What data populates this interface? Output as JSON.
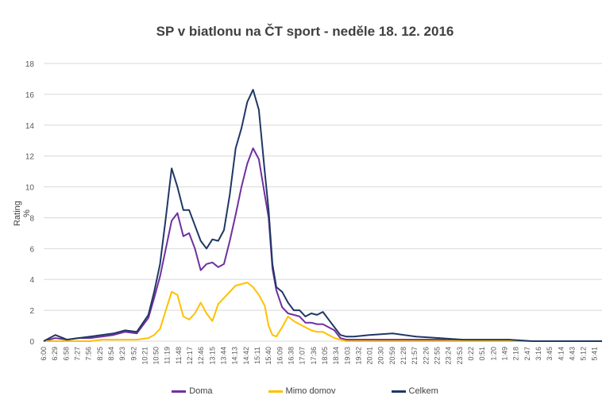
{
  "chart_data": {
    "type": "line",
    "title": "SP v biatlonu na ČT sport - neděle 18. 12. 2016",
    "xlabel": "",
    "ylabel": "Rating %",
    "ylim": [
      0,
      18
    ],
    "yticks": [
      0,
      2,
      4,
      6,
      8,
      10,
      12,
      14,
      16,
      18
    ],
    "grid": true,
    "legend_position": "bottom",
    "xtick_labels": [
      "6:00",
      "6:29",
      "6:58",
      "7:27",
      "7:56",
      "8:25",
      "8:54",
      "9:23",
      "9:52",
      "10:21",
      "10:50",
      "11:19",
      "11:48",
      "12:17",
      "12:46",
      "13:15",
      "13:44",
      "14:13",
      "14:42",
      "15:11",
      "15:40",
      "16:09",
      "16:38",
      "17:07",
      "17:36",
      "18:05",
      "18:34",
      "19:03",
      "19:32",
      "20:01",
      "20:30",
      "20:59",
      "21:28",
      "21:57",
      "22:26",
      "22:55",
      "23:24",
      "23:53",
      "0:22",
      "0:51",
      "1:20",
      "1:49",
      "2:18",
      "2:47",
      "3:16",
      "3:45",
      "4:14",
      "4:43",
      "5:12",
      "5:41"
    ],
    "x_minutes_start": 0,
    "x_minutes_end": 1440,
    "x_step_minutes": 29,
    "series": [
      {
        "name": "Doma",
        "color": "#7030a0",
        "x": [
          0,
          30,
          60,
          90,
          120,
          150,
          180,
          210,
          240,
          270,
          285,
          300,
          315,
          330,
          345,
          360,
          375,
          390,
          405,
          420,
          435,
          450,
          465,
          480,
          495,
          510,
          525,
          540,
          555,
          570,
          580,
          590,
          600,
          615,
          630,
          645,
          660,
          675,
          690,
          705,
          720,
          735,
          750,
          765,
          780,
          800,
          840,
          900,
          960,
          1020,
          1080,
          1140,
          1200,
          1260,
          1320,
          1380,
          1440
        ],
        "y": [
          0.0,
          0.2,
          0.1,
          0.2,
          0.2,
          0.3,
          0.4,
          0.6,
          0.5,
          1.5,
          2.8,
          4.2,
          6.0,
          7.8,
          8.3,
          6.8,
          7.0,
          6.0,
          4.6,
          5.0,
          5.1,
          4.8,
          5.0,
          6.5,
          8.2,
          10.0,
          11.5,
          12.5,
          11.8,
          9.5,
          8.0,
          4.7,
          3.3,
          2.2,
          1.8,
          1.7,
          1.6,
          1.2,
          1.2,
          1.1,
          1.1,
          0.9,
          0.7,
          0.2,
          0.1,
          0.1,
          0.1,
          0.1,
          0.1,
          0.1,
          0.0,
          0.0,
          0.0,
          0.0,
          0.0,
          0.0,
          0.0
        ]
      },
      {
        "name": "Mimo domov",
        "color": "#ffc000",
        "x": [
          0,
          30,
          60,
          90,
          120,
          150,
          180,
          210,
          240,
          270,
          285,
          300,
          315,
          330,
          345,
          360,
          375,
          390,
          405,
          420,
          435,
          450,
          465,
          480,
          495,
          510,
          525,
          540,
          555,
          570,
          580,
          590,
          600,
          615,
          630,
          645,
          660,
          675,
          690,
          705,
          720,
          735,
          750,
          765,
          780,
          800,
          840,
          900,
          960,
          1020,
          1080,
          1140,
          1200,
          1260,
          1320,
          1380,
          1440
        ],
        "y": [
          0.0,
          0.0,
          0.0,
          0.0,
          0.0,
          0.1,
          0.1,
          0.1,
          0.1,
          0.2,
          0.4,
          0.8,
          2.0,
          3.2,
          3.0,
          1.6,
          1.4,
          1.8,
          2.5,
          1.8,
          1.3,
          2.4,
          2.8,
          3.2,
          3.6,
          3.7,
          3.8,
          3.5,
          3.0,
          2.3,
          1.0,
          0.4,
          0.3,
          0.9,
          1.6,
          1.3,
          1.1,
          0.9,
          0.7,
          0.6,
          0.6,
          0.4,
          0.2,
          0.1,
          0.0,
          0.0,
          0.0,
          0.0,
          0.0,
          0.0,
          0.0,
          0.0,
          0.0,
          0.0,
          0.0,
          0.0,
          0.0
        ]
      },
      {
        "name": "Celkem",
        "color": "#1f3864",
        "x": [
          0,
          30,
          60,
          90,
          120,
          150,
          180,
          210,
          240,
          270,
          285,
          300,
          315,
          330,
          345,
          360,
          375,
          390,
          405,
          420,
          435,
          450,
          465,
          480,
          495,
          510,
          525,
          540,
          555,
          570,
          580,
          590,
          600,
          615,
          630,
          645,
          660,
          675,
          690,
          705,
          720,
          735,
          750,
          765,
          780,
          800,
          840,
          900,
          960,
          1020,
          1080,
          1140,
          1200,
          1260,
          1320,
          1380,
          1440
        ],
        "y": [
          0.0,
          0.4,
          0.1,
          0.2,
          0.3,
          0.4,
          0.5,
          0.7,
          0.6,
          1.7,
          3.2,
          5.0,
          8.0,
          11.2,
          10.0,
          8.5,
          8.5,
          7.5,
          6.5,
          6.0,
          6.6,
          6.5,
          7.2,
          9.5,
          12.5,
          13.8,
          15.5,
          16.3,
          15.0,
          11.0,
          8.5,
          5.0,
          3.5,
          3.2,
          2.5,
          2.0,
          2.0,
          1.6,
          1.8,
          1.7,
          1.9,
          1.4,
          0.9,
          0.4,
          0.3,
          0.3,
          0.4,
          0.5,
          0.3,
          0.2,
          0.1,
          0.1,
          0.1,
          0.0,
          0.0,
          0.0,
          0.0
        ]
      }
    ]
  }
}
